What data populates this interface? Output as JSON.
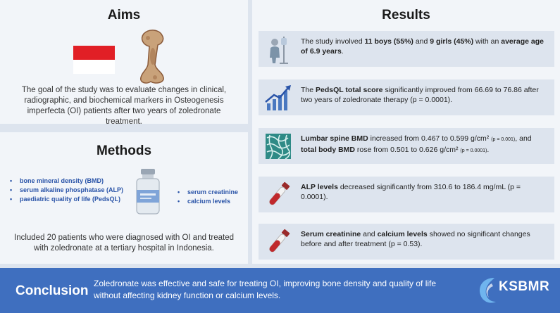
{
  "aims": {
    "title": "Aims",
    "text": "The goal of the study was to evaluate changes in clinical, radiographic, and biochemical markers in Osteogenesis imperfecta (OI) patients after two years of zoledronate treatment."
  },
  "methods": {
    "title": "Methods",
    "list_left": [
      "bone mineral density (BMD)",
      "serum alkaline phosphatase (ALP)",
      "paediatric quality of life (PedsQL)"
    ],
    "list_right": [
      "serum creatinine",
      "calcium levels"
    ],
    "text": "Included 20 patients who were diagnosed with OI and treated with zoledronate at a tertiary hospital in Indonesia."
  },
  "results": {
    "title": "Results",
    "r1": {
      "a": "The study involved ",
      "b": "11 boys (55%)",
      "c": " and ",
      "d": "9 girls (45%)",
      "e": " with an ",
      "f": "average age of 6.9 years",
      "g": "."
    },
    "r2": {
      "a": "The ",
      "b": "PedsQL total score",
      "c": " significantly improved from 66.69 to 76.86 after two years of zoledronate therapy (p = 0.0001)."
    },
    "r3": {
      "a": "Lumbar spine BMD",
      "b": " increased from 0.467 to 0.599 g/cm² ",
      "c": "(p = 0.001)",
      "d": ", and ",
      "e": "total body BMD",
      "f": " rose from 0.501 to 0.626 g/cm² ",
      "g": "(p = 0.0001)",
      "h": "."
    },
    "r4": {
      "a": "ALP levels",
      "b": " decreased significantly from 310.6 to 186.4 mg/mL (p = 0.0001)."
    },
    "r5": {
      "a": "Serum creatinine",
      "b": " and ",
      "c": "calcium levels",
      "d": " showed no significant changes before and after treatment (p = 0.53)."
    }
  },
  "conclusion": {
    "title": "Conclusion",
    "text": "Zoledronate was effective and safe for treating OI, improving bone density and quality of life without affecting kidney function or calcium levels."
  },
  "logo": {
    "text": "KSBMR"
  },
  "colors": {
    "accent": "#3f6fbf",
    "list_blue": "#2a54a8",
    "flag_red": "#e11f26"
  }
}
